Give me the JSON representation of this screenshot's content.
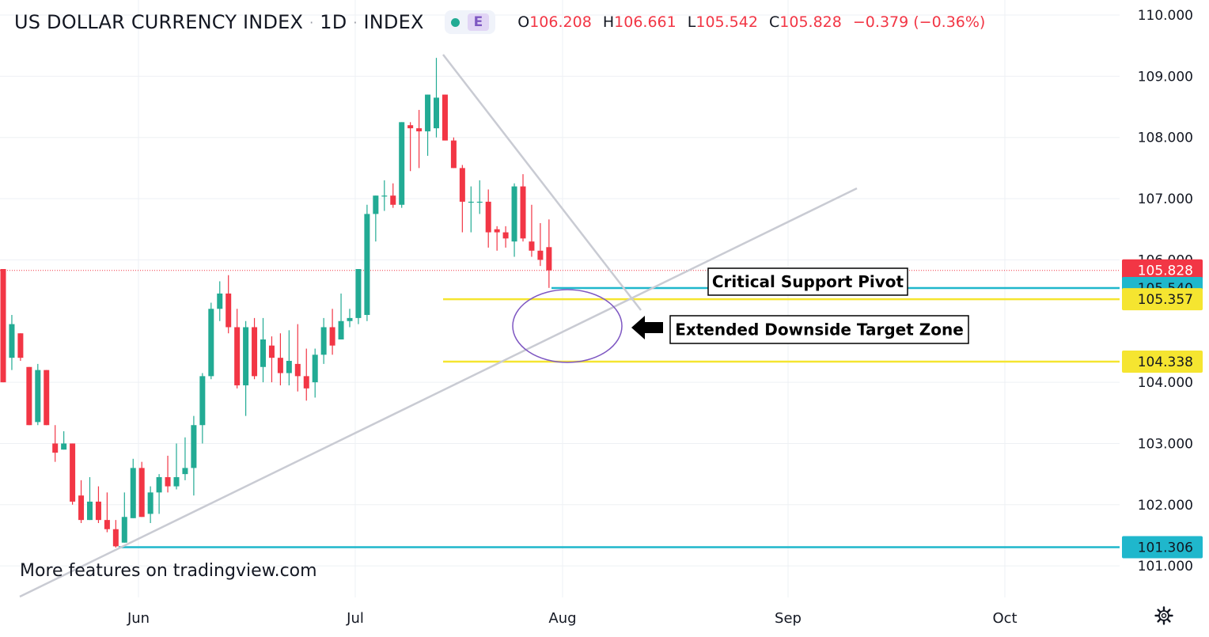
{
  "header": {
    "symbol": "US DOLLAR CURRENCY INDEX",
    "sep": "·",
    "interval": "1D",
    "exchange": "INDEX",
    "badge_e": "E",
    "ohlc": {
      "o_label": "O",
      "o": "106.208",
      "h_label": "H",
      "h": "106.661",
      "l_label": "L",
      "l": "105.542",
      "c_label": "C",
      "c": "105.828",
      "change": "−0.379 (−0.36%)"
    }
  },
  "watermark": "More features on tradingview.com",
  "settings_icon": "gear-icon",
  "colors": {
    "up": "#22ab94",
    "down": "#f23645",
    "yellow": "#f5e530",
    "cyan": "#1fb7cc",
    "trend": "#c9cbd3",
    "ellipse": "#7e57c2",
    "grid": "#eef0f4",
    "text": "#131722"
  },
  "chart_data": {
    "type": "candlestick",
    "x_axis": {
      "ticks": [
        "Jun",
        "Jul",
        "Aug",
        "Sep",
        "Oct"
      ]
    },
    "y_axis": {
      "ticks": [
        "110.000",
        "109.000",
        "108.000",
        "107.000",
        "106.000",
        "104.000",
        "103.000",
        "102.000",
        "101.000"
      ],
      "range": [
        100.55,
        110.2
      ]
    },
    "candles": [
      {
        "o": 105.85,
        "h": 105.85,
        "l": 104.0,
        "c": 104.0
      },
      {
        "o": 104.4,
        "h": 105.1,
        "l": 104.2,
        "c": 104.95
      },
      {
        "o": 104.8,
        "h": 104.8,
        "l": 104.35,
        "c": 104.4
      },
      {
        "o": 104.25,
        "h": 104.25,
        "l": 103.3,
        "c": 103.3
      },
      {
        "o": 103.35,
        "h": 104.3,
        "l": 103.3,
        "c": 104.2
      },
      {
        "o": 104.2,
        "h": 104.2,
        "l": 103.3,
        "c": 103.3
      },
      {
        "o": 103.0,
        "h": 103.3,
        "l": 102.7,
        "c": 102.85
      },
      {
        "o": 102.9,
        "h": 103.2,
        "l": 102.9,
        "c": 103.0
      },
      {
        "o": 103.0,
        "h": 103.0,
        "l": 102.0,
        "c": 102.05
      },
      {
        "o": 102.15,
        "h": 102.4,
        "l": 101.7,
        "c": 101.75
      },
      {
        "o": 101.75,
        "h": 102.45,
        "l": 101.75,
        "c": 102.05
      },
      {
        "o": 102.05,
        "h": 102.3,
        "l": 101.7,
        "c": 101.75
      },
      {
        "o": 101.75,
        "h": 102.2,
        "l": 101.55,
        "c": 101.6
      },
      {
        "o": 101.6,
        "h": 101.75,
        "l": 101.3,
        "c": 101.32
      },
      {
        "o": 101.38,
        "h": 102.2,
        "l": 101.38,
        "c": 101.8
      },
      {
        "o": 101.78,
        "h": 102.75,
        "l": 101.78,
        "c": 102.6
      },
      {
        "o": 102.6,
        "h": 102.7,
        "l": 101.8,
        "c": 101.8
      },
      {
        "o": 101.85,
        "h": 102.3,
        "l": 101.7,
        "c": 102.2
      },
      {
        "o": 102.2,
        "h": 102.5,
        "l": 101.85,
        "c": 102.45
      },
      {
        "o": 102.45,
        "h": 102.8,
        "l": 102.2,
        "c": 102.3
      },
      {
        "o": 102.3,
        "h": 103.0,
        "l": 102.25,
        "c": 102.45
      },
      {
        "o": 102.5,
        "h": 103.1,
        "l": 102.4,
        "c": 102.6
      },
      {
        "o": 102.6,
        "h": 103.45,
        "l": 102.15,
        "c": 103.3
      },
      {
        "o": 103.3,
        "h": 104.15,
        "l": 103.0,
        "c": 104.1
      },
      {
        "o": 104.1,
        "h": 105.3,
        "l": 104.05,
        "c": 105.2
      },
      {
        "o": 105.2,
        "h": 105.65,
        "l": 105.0,
        "c": 105.45
      },
      {
        "o": 105.45,
        "h": 105.75,
        "l": 104.8,
        "c": 104.9
      },
      {
        "o": 104.9,
        "h": 105.2,
        "l": 103.9,
        "c": 103.95
      },
      {
        "o": 103.95,
        "h": 105.0,
        "l": 103.45,
        "c": 104.9
      },
      {
        "o": 104.9,
        "h": 105.05,
        "l": 104.05,
        "c": 104.1
      },
      {
        "o": 104.25,
        "h": 105.05,
        "l": 104.0,
        "c": 104.7
      },
      {
        "o": 104.6,
        "h": 104.75,
        "l": 104.0,
        "c": 104.4
      },
      {
        "o": 104.4,
        "h": 104.8,
        "l": 103.95,
        "c": 104.15
      },
      {
        "o": 104.15,
        "h": 104.85,
        "l": 103.95,
        "c": 104.35
      },
      {
        "o": 104.3,
        "h": 104.95,
        "l": 103.85,
        "c": 104.1
      },
      {
        "o": 104.1,
        "h": 104.55,
        "l": 103.7,
        "c": 103.9
      },
      {
        "o": 104.0,
        "h": 104.55,
        "l": 103.75,
        "c": 104.45
      },
      {
        "o": 104.45,
        "h": 105.05,
        "l": 104.3,
        "c": 104.9
      },
      {
        "o": 104.9,
        "h": 105.2,
        "l": 104.45,
        "c": 104.6
      },
      {
        "o": 104.7,
        "h": 105.45,
        "l": 104.7,
        "c": 105.0
      },
      {
        "o": 105.0,
        "h": 105.2,
        "l": 104.9,
        "c": 105.05
      },
      {
        "o": 105.05,
        "h": 105.85,
        "l": 104.95,
        "c": 105.85
      },
      {
        "o": 105.1,
        "h": 106.9,
        "l": 105.0,
        "c": 106.75
      },
      {
        "o": 106.75,
        "h": 107.05,
        "l": 106.3,
        "c": 107.05
      },
      {
        "o": 107.05,
        "h": 107.3,
        "l": 106.8,
        "c": 107.05
      },
      {
        "o": 107.05,
        "h": 107.25,
        "l": 106.85,
        "c": 106.9
      },
      {
        "o": 106.9,
        "h": 108.25,
        "l": 106.85,
        "c": 108.25
      },
      {
        "o": 108.2,
        "h": 108.25,
        "l": 107.45,
        "c": 108.15
      },
      {
        "o": 108.15,
        "h": 108.45,
        "l": 107.5,
        "c": 108.1
      },
      {
        "o": 108.1,
        "h": 108.7,
        "l": 107.7,
        "c": 108.7
      },
      {
        "o": 108.15,
        "h": 109.3,
        "l": 108.0,
        "c": 108.65
      },
      {
        "o": 108.7,
        "h": 108.7,
        "l": 107.95,
        "c": 107.95
      },
      {
        "o": 107.95,
        "h": 108.0,
        "l": 107.5,
        "c": 107.5
      },
      {
        "o": 107.5,
        "h": 107.55,
        "l": 106.45,
        "c": 106.95
      },
      {
        "o": 106.95,
        "h": 107.2,
        "l": 106.45,
        "c": 106.95
      },
      {
        "o": 106.95,
        "h": 107.3,
        "l": 106.75,
        "c": 106.95
      },
      {
        "o": 106.95,
        "h": 107.15,
        "l": 106.2,
        "c": 106.45
      },
      {
        "o": 106.5,
        "h": 106.55,
        "l": 106.15,
        "c": 106.45
      },
      {
        "o": 106.45,
        "h": 106.55,
        "l": 106.2,
        "c": 106.35
      },
      {
        "o": 106.3,
        "h": 107.25,
        "l": 106.05,
        "c": 107.2
      },
      {
        "o": 107.2,
        "h": 107.4,
        "l": 106.3,
        "c": 106.35
      },
      {
        "o": 106.3,
        "h": 106.9,
        "l": 106.05,
        "c": 106.15
      },
      {
        "o": 106.15,
        "h": 106.6,
        "l": 105.9,
        "c": 106.0
      },
      {
        "o": 106.208,
        "h": 106.661,
        "l": 105.542,
        "c": 105.828
      }
    ],
    "price_lines": [
      {
        "name": "Critical Support Pivot",
        "value": 105.54
      },
      {
        "value": 105.357
      },
      {
        "value": 104.338
      },
      {
        "value": 101.306
      }
    ],
    "last_price": 105.828,
    "price_tags": [
      "105.828",
      "105.540",
      "105.357",
      "104.338",
      "101.306"
    ],
    "annotations": [
      "Critical Support Pivot",
      "Extended Downside Target Zone"
    ]
  }
}
